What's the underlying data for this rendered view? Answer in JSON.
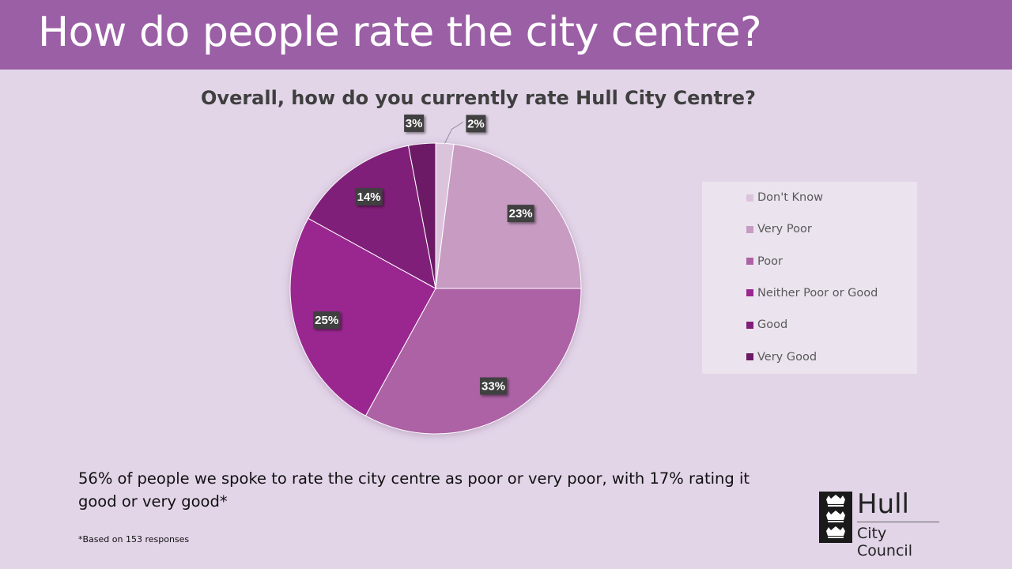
{
  "page": {
    "title": "How do people rate the city centre?",
    "summary": "56% of people we spoke to rate the city centre as poor or very poor, with 17% rating it good or very good*",
    "footnote": "*Based on 153 responses"
  },
  "logo": {
    "name": "Hull",
    "subtitle": "City Council"
  },
  "chart_data": {
    "type": "pie",
    "title": "Overall, how do you currently rate Hull City Centre?",
    "legend_position": "right",
    "slices": [
      {
        "label": "Don't Know",
        "value": 2,
        "display": "2%",
        "color": "#dcc3dc"
      },
      {
        "label": "Very Poor",
        "value": 23,
        "display": "23%",
        "color": "#c79bc2"
      },
      {
        "label": "Poor",
        "value": 33,
        "display": "33%",
        "color": "#ad62a5"
      },
      {
        "label": "Neither Poor or Good",
        "value": 25,
        "display": "25%",
        "color": "#9a2790"
      },
      {
        "label": "Good",
        "value": 14,
        "display": "14%",
        "color": "#801f79"
      },
      {
        "label": "Very Good",
        "value": 3,
        "display": "3%",
        "color": "#6c1a66"
      }
    ]
  }
}
